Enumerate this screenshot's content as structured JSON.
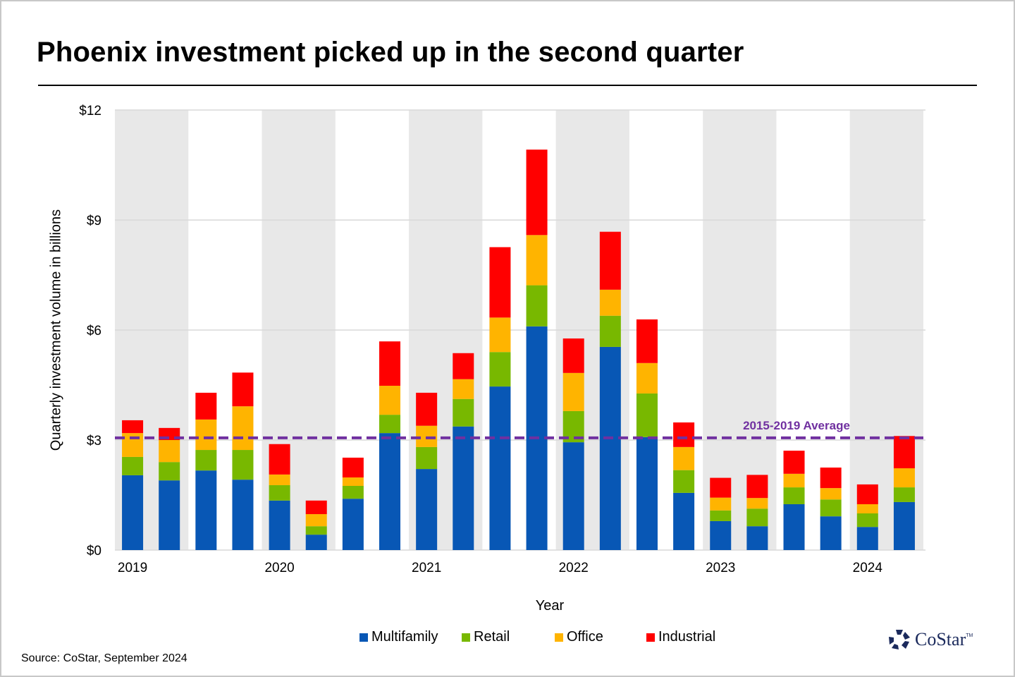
{
  "title": "Phoenix investment picked up in the second quarter",
  "source": "Source: CoStar, September 2024",
  "logo": {
    "text": "CoStar",
    "tm": "TM"
  },
  "chart_data": {
    "type": "bar",
    "stacked": true,
    "title": "Phoenix investment picked up in the second quarter",
    "xlabel": "Year",
    "ylabel": "Quarterly investment volume in billions",
    "ylim": [
      0,
      12
    ],
    "yticks": [
      0,
      3,
      6,
      9,
      12
    ],
    "ytick_labels": [
      "$0",
      "$3",
      "$6",
      "$9",
      "$12"
    ],
    "grid": true,
    "legend_position": "bottom-center",
    "year_labels": [
      "2019",
      "2020",
      "2021",
      "2022",
      "2023",
      "2024"
    ],
    "categories": [
      "2019 Q1",
      "2019 Q2",
      "2019 Q3",
      "2019 Q4",
      "2020 Q1",
      "2020 Q2",
      "2020 Q3",
      "2020 Q4",
      "2021 Q1",
      "2021 Q2",
      "2021 Q3",
      "2021 Q4",
      "2022 Q1",
      "2022 Q2",
      "2022 Q3",
      "2022 Q4",
      "2023 Q1",
      "2023 Q2",
      "2023 Q3",
      "2023 Q4",
      "2024 Q1",
      "2024 Q2"
    ],
    "series": [
      {
        "name": "Multifamily",
        "color": "#0857b5",
        "values": [
          2.04,
          1.9,
          2.17,
          1.92,
          1.35,
          0.42,
          1.4,
          3.19,
          2.21,
          3.37,
          4.46,
          6.1,
          2.94,
          5.54,
          3.08,
          1.56,
          0.79,
          0.65,
          1.25,
          0.92,
          0.63,
          1.31
        ]
      },
      {
        "name": "Retail",
        "color": "#78b800",
        "values": [
          0.5,
          0.5,
          0.56,
          0.81,
          0.42,
          0.23,
          0.35,
          0.5,
          0.6,
          0.75,
          0.94,
          1.12,
          0.85,
          0.85,
          1.19,
          0.62,
          0.29,
          0.48,
          0.46,
          0.46,
          0.37,
          0.4
        ]
      },
      {
        "name": "Office",
        "color": "#ffb400",
        "values": [
          0.65,
          0.6,
          0.83,
          1.19,
          0.29,
          0.33,
          0.23,
          0.79,
          0.58,
          0.54,
          0.94,
          1.37,
          1.04,
          0.71,
          0.83,
          0.63,
          0.35,
          0.29,
          0.37,
          0.31,
          0.25,
          0.52
        ]
      },
      {
        "name": "Industrial",
        "color": "#ff0000",
        "values": [
          0.35,
          0.33,
          0.73,
          0.92,
          0.83,
          0.37,
          0.54,
          1.21,
          0.9,
          0.71,
          1.92,
          2.33,
          0.94,
          1.58,
          1.19,
          0.67,
          0.54,
          0.63,
          0.63,
          0.56,
          0.54,
          0.88
        ]
      }
    ],
    "reference_line": {
      "label": "2015-2019 Average",
      "value": 3.06,
      "color": "#7030a0",
      "style": "dashed"
    },
    "band_color": "#e8e8e8",
    "grid_color": "#d9d9d9"
  }
}
